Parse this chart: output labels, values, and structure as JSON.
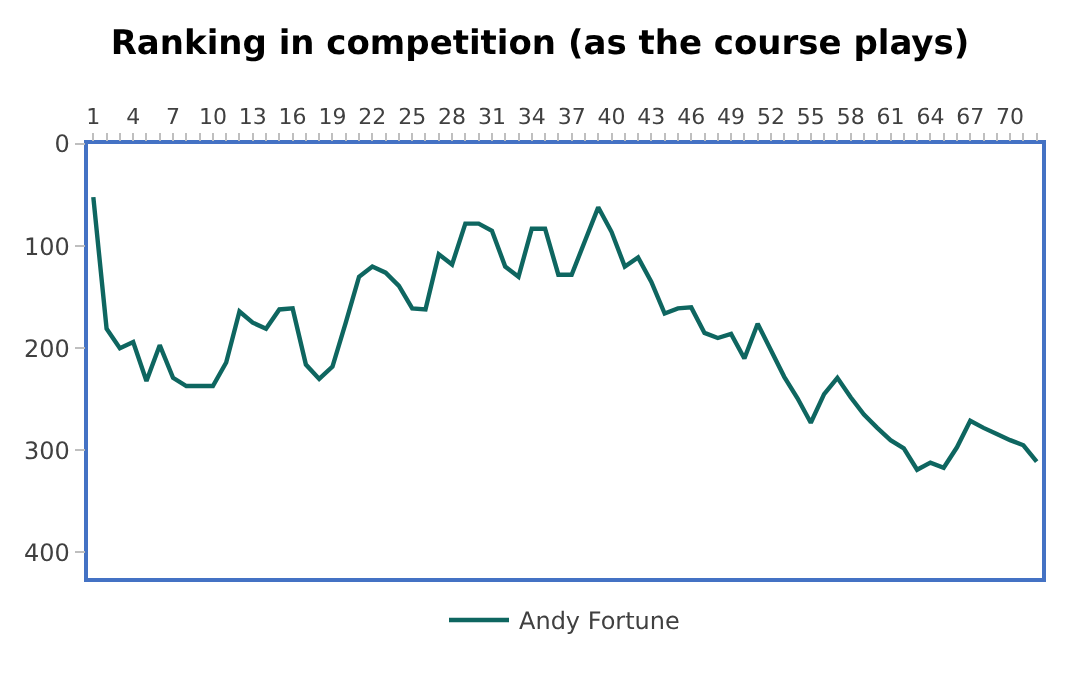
{
  "chart_data": {
    "type": "line",
    "title": "Ranking in competition (as the course plays)",
    "categories": [
      "1",
      null,
      null,
      "4",
      null,
      null,
      "7",
      null,
      null,
      "10",
      null,
      null,
      "13",
      null,
      null,
      "16",
      null,
      null,
      "19",
      null,
      null,
      "22",
      null,
      null,
      "25",
      null,
      null,
      "28",
      null,
      null,
      "31",
      null,
      null,
      "34",
      null,
      null,
      "37",
      null,
      null,
      "40",
      null,
      null,
      "43",
      null,
      null,
      "46",
      null,
      null,
      "49",
      null,
      null,
      "52",
      null,
      null,
      "55",
      null,
      null,
      "58",
      null,
      null,
      "61",
      null,
      null,
      "64",
      null,
      null,
      "67",
      null,
      null,
      "70",
      null,
      null
    ],
    "series": [
      {
        "name": "Andy Fortune",
        "color": "#0e6660",
        "values": [
          52,
          181,
          200,
          194,
          232,
          197,
          229,
          237,
          237,
          237,
          214,
          164,
          175,
          181,
          162,
          161,
          216,
          230,
          218,
          175,
          130,
          120,
          126,
          139,
          161,
          162,
          108,
          118,
          78,
          78,
          85,
          120,
          130,
          83,
          83,
          128,
          128,
          95,
          62,
          86,
          120,
          111,
          135,
          166,
          161,
          160,
          185,
          190,
          186,
          210,
          176,
          202,
          228,
          249,
          273,
          245,
          229,
          248,
          265,
          278,
          290,
          298,
          319,
          312,
          317,
          297,
          271,
          278,
          284,
          290,
          295,
          311
        ]
      }
    ],
    "ylim": [
      425,
      0
    ],
    "yticks": [
      0,
      100,
      200,
      300,
      400
    ],
    "legend": "bottom",
    "marker": "none",
    "line_style": "solid"
  }
}
